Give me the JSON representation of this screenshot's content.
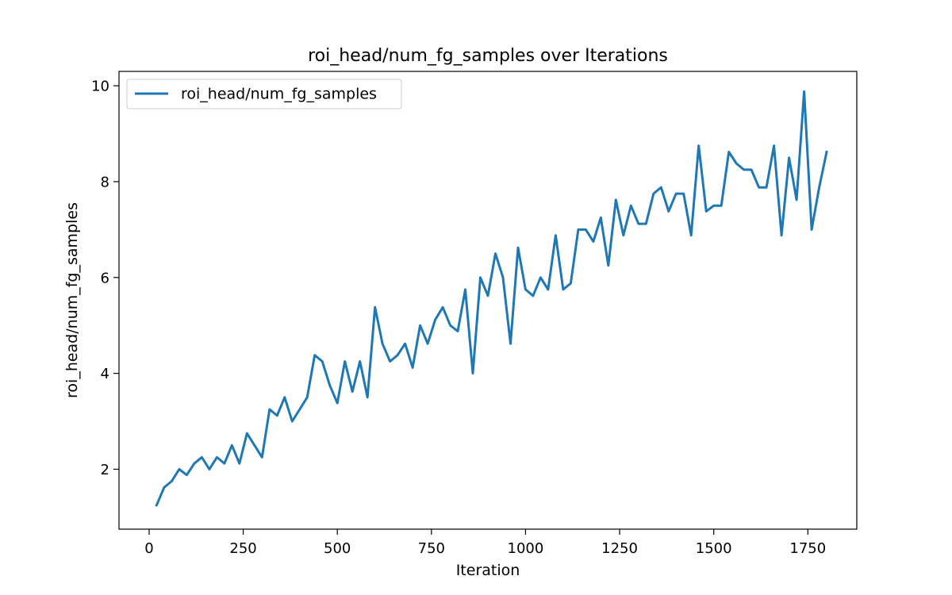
{
  "chart_data": {
    "type": "line",
    "title": "roi_head/num_fg_samples over Iterations",
    "xlabel": "Iteration",
    "ylabel": "roi_head/num_fg_samples",
    "xlim": [
      -80,
      1880
    ],
    "ylim": [
      0.75,
      10.3
    ],
    "xticks": [
      0,
      250,
      500,
      750,
      1000,
      1250,
      1500,
      1750
    ],
    "yticks": [
      2,
      4,
      6,
      8,
      10
    ],
    "grid": false,
    "legend": "top-left",
    "series": [
      {
        "name": "roi_head/num_fg_samples",
        "color": "#1f77b4",
        "x": [
          20,
          40,
          60,
          80,
          100,
          120,
          140,
          160,
          180,
          200,
          220,
          240,
          260,
          280,
          300,
          320,
          340,
          360,
          380,
          400,
          420,
          440,
          460,
          480,
          500,
          520,
          540,
          560,
          580,
          600,
          620,
          640,
          660,
          680,
          700,
          720,
          740,
          760,
          780,
          800,
          820,
          840,
          860,
          880,
          900,
          920,
          940,
          960,
          980,
          1000,
          1020,
          1040,
          1060,
          1080,
          1100,
          1120,
          1140,
          1160,
          1180,
          1200,
          1220,
          1240,
          1260,
          1280,
          1300,
          1320,
          1340,
          1360,
          1380,
          1400,
          1420,
          1440,
          1460,
          1480,
          1500,
          1520,
          1540,
          1560,
          1580,
          1600,
          1620,
          1640,
          1660,
          1680,
          1700,
          1720,
          1740,
          1760,
          1780,
          1800
        ],
        "y": [
          1.25,
          1.62,
          1.75,
          2.0,
          1.88,
          2.12,
          2.25,
          2.0,
          2.25,
          2.12,
          2.5,
          2.12,
          2.75,
          2.5,
          2.25,
          3.25,
          3.12,
          3.5,
          3.0,
          3.25,
          3.5,
          4.38,
          4.25,
          3.75,
          3.38,
          4.25,
          3.62,
          4.25,
          3.5,
          5.38,
          4.62,
          4.25,
          4.38,
          4.62,
          4.12,
          5.0,
          4.62,
          5.12,
          5.38,
          5.0,
          4.88,
          5.75,
          4.0,
          6.0,
          5.62,
          6.5,
          6.0,
          4.62,
          6.62,
          5.75,
          5.62,
          6.0,
          5.75,
          6.88,
          5.75,
          5.88,
          7.0,
          7.0,
          6.75,
          7.25,
          6.25,
          7.62,
          6.88,
          7.5,
          7.12,
          7.12,
          7.75,
          7.88,
          7.38,
          7.75,
          7.75,
          6.88,
          8.75,
          7.38,
          7.5,
          7.5,
          8.62,
          8.38,
          8.25,
          8.25,
          7.88,
          7.88,
          8.75,
          6.88,
          8.5,
          7.62,
          9.88,
          7.0,
          7.88,
          8.62
        ]
      }
    ]
  }
}
